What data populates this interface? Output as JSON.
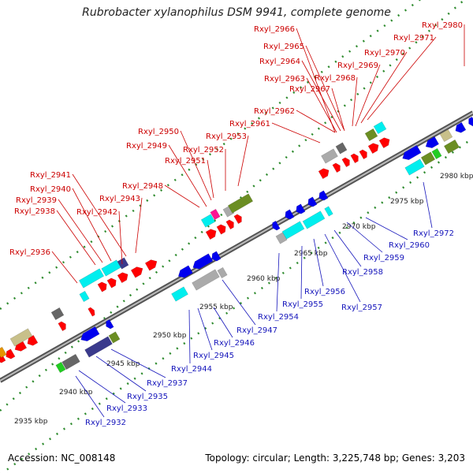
{
  "title": "Rubrobacter xylanophilus DSM 9941, complete genome",
  "footer": {
    "accession": "Accession: NC_008148",
    "topology": "Topology: circular; Length: 3,225,748 bp; Genes: 3,203"
  },
  "colors": {
    "red": "#ff0000",
    "blue": "#0000ee",
    "cyan": "#00eeee",
    "olive": "#6b8e23",
    "green": "#22cc22",
    "navy": "#3a3a8c",
    "gray": "#aaaaaa",
    "darkgray": "#666666",
    "khaki": "#c8c08a",
    "magenta": "#ff1493",
    "orange": "#e59400",
    "dotGreen": "#2e8b2e",
    "backbone": "#777777",
    "topLabel": "#cc0000",
    "bottomLabel": "#1515bb"
  },
  "kbp_ticks": [
    "2935 kbp",
    "2940 kbp",
    "2945 kbp",
    "2950 kbp",
    "2955 kbp",
    "2960 kbp",
    "2965 kbp",
    "2970 kbp",
    "2975 kbp",
    "2980 kbp"
  ],
  "top_genes": [
    "Rxyl_2936",
    "Rxyl_2938",
    "Rxyl_2939",
    "Rxyl_2940",
    "Rxyl_2941",
    "Rxyl_2942",
    "Rxyl_2943",
    "Rxyl_2948",
    "Rxyl_2949",
    "Rxyl_2950",
    "Rxyl_2951",
    "Rxyl_2952",
    "Rxyl_2953",
    "Rxyl_2961",
    "Rxyl_2962",
    "Rxyl_2963",
    "Rxyl_2964",
    "Rxyl_2965",
    "Rxyl_2966",
    "Rxyl_2967",
    "Rxyl_2968",
    "Rxyl_2969",
    "Rxyl_2970",
    "Rxyl_2971",
    "Rxyl_2980"
  ],
  "bottom_genes": [
    "Rxyl_2932",
    "Rxyl_2933",
    "Rxyl_2935",
    "Rxyl_2937",
    "Rxyl_2944",
    "Rxyl_2945",
    "Rxyl_2946",
    "Rxyl_2947",
    "Rxyl_2954",
    "Rxyl_2955",
    "Rxyl_2956",
    "Rxyl_2957",
    "Rxyl_2958",
    "Rxyl_2959",
    "Rxyl_2960",
    "Rxyl_2972"
  ]
}
